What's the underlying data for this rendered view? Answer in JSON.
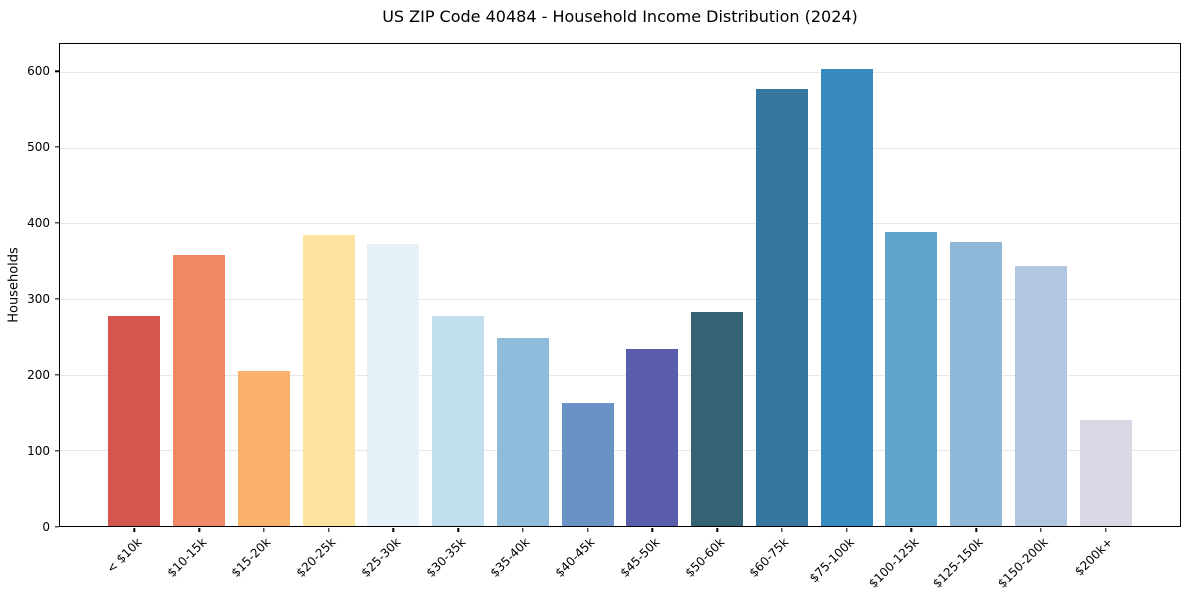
{
  "chart_data": {
    "type": "bar",
    "title": "US ZIP Code 40484 - Household Income Distribution (2024)",
    "xlabel": "",
    "ylabel": "Households",
    "categories": [
      "< $10k",
      "$10-15k",
      "$15-20k",
      "$20-25k",
      "$25-30k",
      "$30-35k",
      "$35-40k",
      "$40-45k",
      "$45-50k",
      "$50-60k",
      "$60-75k",
      "$75-100k",
      "$100-125k",
      "$125-150k",
      "$150-200k",
      "$200k+"
    ],
    "values": [
      277,
      358,
      205,
      385,
      373,
      277,
      248,
      162,
      234,
      283,
      577,
      604,
      389,
      376,
      344,
      140
    ],
    "bar_colors": [
      "#d4564f",
      "#f08765",
      "#fab16c",
      "#fde3a0",
      "#e6f1f8",
      "#c1deec",
      "#8ebcda",
      "#6a92c6",
      "#5a5cac",
      "#366276",
      "#35779e",
      "#378bc0",
      "#5fa5cb",
      "#8fb7d8",
      "#b3c6e0",
      "#d9d9e6"
    ],
    "yticks": [
      0,
      100,
      200,
      300,
      400,
      500,
      600
    ],
    "ylim": [
      0,
      637
    ],
    "grid": "horizontal",
    "gridline_color": "#e7e7e7",
    "legend": false
  }
}
